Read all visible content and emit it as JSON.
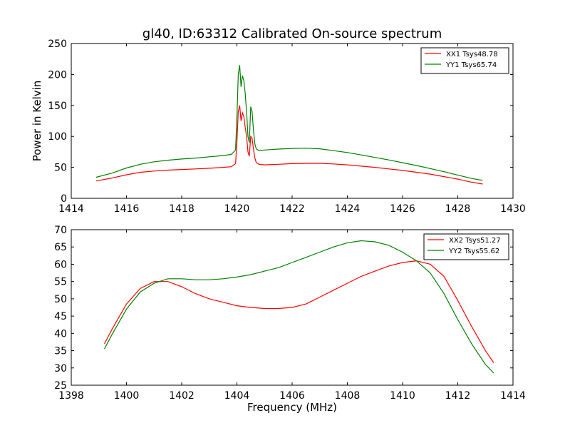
{
  "title": "gl40, ID:63312 Calibrated On-source spectrum",
  "chart_data": [
    {
      "type": "line",
      "title": "gl40, ID:63312 Calibrated On-source spectrum",
      "xlabel": "",
      "ylabel": "Power in Kelvin",
      "xlim": [
        1414,
        1430
      ],
      "ylim": [
        0,
        250
      ],
      "xticks": [
        "1414",
        "1416",
        "1418",
        "1420",
        "1422",
        "1424",
        "1426",
        "1428",
        "1430"
      ],
      "yticks": [
        "0",
        "50",
        "100",
        "150",
        "200",
        "250"
      ],
      "grid": false,
      "legend_position": "top-right",
      "series": [
        {
          "name": "XX1 Tsys48.78",
          "color": "#ff0000",
          "x": [
            1414.9,
            1415.5,
            1416.0,
            1416.5,
            1417.0,
            1417.5,
            1418.0,
            1418.5,
            1419.0,
            1419.5,
            1419.8,
            1419.95,
            1420.0,
            1420.05,
            1420.1,
            1420.15,
            1420.2,
            1420.25,
            1420.3,
            1420.35,
            1420.4,
            1420.45,
            1420.5,
            1420.55,
            1420.6,
            1420.65,
            1420.7,
            1420.8,
            1421.0,
            1421.5,
            1422.0,
            1422.5,
            1423.0,
            1423.5,
            1424.0,
            1424.5,
            1425.0,
            1425.5,
            1426.0,
            1426.5,
            1427.0,
            1427.5,
            1428.0,
            1428.5,
            1428.9
          ],
          "y": [
            28,
            33,
            38,
            42,
            44,
            45.5,
            46.5,
            47.5,
            48.5,
            50,
            51,
            56,
            90,
            140,
            150,
            125,
            138,
            132,
            115,
            100,
            75,
            68,
            100,
            97,
            80,
            65,
            58,
            55,
            54,
            55,
            56,
            56.5,
            56.5,
            55.5,
            54,
            52,
            50,
            47.5,
            45,
            42,
            39,
            35,
            31,
            26,
            23
          ]
        },
        {
          "name": "YY1 Tsys65.74",
          "color": "#008000",
          "x": [
            1414.9,
            1415.5,
            1416.0,
            1416.5,
            1417.0,
            1417.5,
            1418.0,
            1418.5,
            1419.0,
            1419.5,
            1419.8,
            1419.95,
            1420.0,
            1420.05,
            1420.1,
            1420.15,
            1420.2,
            1420.25,
            1420.3,
            1420.35,
            1420.4,
            1420.45,
            1420.5,
            1420.55,
            1420.6,
            1420.65,
            1420.7,
            1420.8,
            1421.0,
            1421.5,
            1422.0,
            1422.5,
            1423.0,
            1423.5,
            1424.0,
            1424.5,
            1425.0,
            1425.5,
            1426.0,
            1426.5,
            1427.0,
            1427.5,
            1428.0,
            1428.5,
            1428.9
          ],
          "y": [
            34,
            41,
            49,
            55,
            59,
            61.5,
            63.5,
            65,
            67,
            69,
            71,
            78,
            130,
            200,
            215,
            180,
            198,
            190,
            170,
            140,
            100,
            90,
            148,
            140,
            110,
            88,
            80,
            77,
            78,
            79.5,
            80.5,
            81,
            80,
            77,
            74,
            70,
            66,
            62,
            57.5,
            53,
            48,
            43,
            37.5,
            32,
            29
          ]
        }
      ]
    },
    {
      "type": "line",
      "title": "",
      "xlabel": "Frequency (MHz)",
      "ylabel": "",
      "xlim": [
        1398,
        1414
      ],
      "ylim": [
        25,
        70
      ],
      "xticks": [
        "1398",
        "1400",
        "1402",
        "1404",
        "1406",
        "1408",
        "1410",
        "1412",
        "1414"
      ],
      "yticks": [
        "25",
        "30",
        "35",
        "40",
        "45",
        "50",
        "55",
        "60",
        "65",
        "70"
      ],
      "grid": false,
      "legend_position": "top-right",
      "series": [
        {
          "name": "XX2 Tsys51.27",
          "color": "#ff0000",
          "x": [
            1399.2,
            1399.5,
            1400.0,
            1400.5,
            1401.0,
            1401.5,
            1402.0,
            1402.5,
            1403.0,
            1403.5,
            1404.0,
            1404.5,
            1405.0,
            1405.5,
            1406.0,
            1406.5,
            1407.0,
            1407.5,
            1408.0,
            1408.5,
            1409.0,
            1409.5,
            1410.0,
            1410.5,
            1411.0,
            1411.5,
            1412.0,
            1412.5,
            1413.0,
            1413.3
          ],
          "y": [
            37,
            41.5,
            48.5,
            53,
            55,
            55,
            53.5,
            51.5,
            50,
            49,
            48,
            47.5,
            47.2,
            47.2,
            47.5,
            48.5,
            50.5,
            52.5,
            54.5,
            56.5,
            58,
            59.5,
            60.5,
            61,
            60,
            56.5,
            49.5,
            42,
            35,
            31.5
          ]
        },
        {
          "name": "YY2 Tsys55.62",
          "color": "#008000",
          "x": [
            1399.2,
            1399.5,
            1400.0,
            1400.5,
            1401.0,
            1401.5,
            1402.0,
            1402.5,
            1403.0,
            1403.5,
            1404.0,
            1404.5,
            1405.0,
            1405.5,
            1406.0,
            1406.5,
            1407.0,
            1407.5,
            1408.0,
            1408.5,
            1409.0,
            1409.5,
            1410.0,
            1410.5,
            1411.0,
            1411.5,
            1412.0,
            1412.5,
            1413.0,
            1413.3
          ],
          "y": [
            35.5,
            40,
            47,
            52,
            54.5,
            55.8,
            55.8,
            55.5,
            55.5,
            55.8,
            56.3,
            57,
            58,
            59,
            60.5,
            62,
            63.5,
            65,
            66.2,
            66.8,
            66.5,
            65.5,
            63.5,
            61,
            57.5,
            51.5,
            44,
            37,
            31,
            28.5
          ]
        }
      ]
    }
  ]
}
